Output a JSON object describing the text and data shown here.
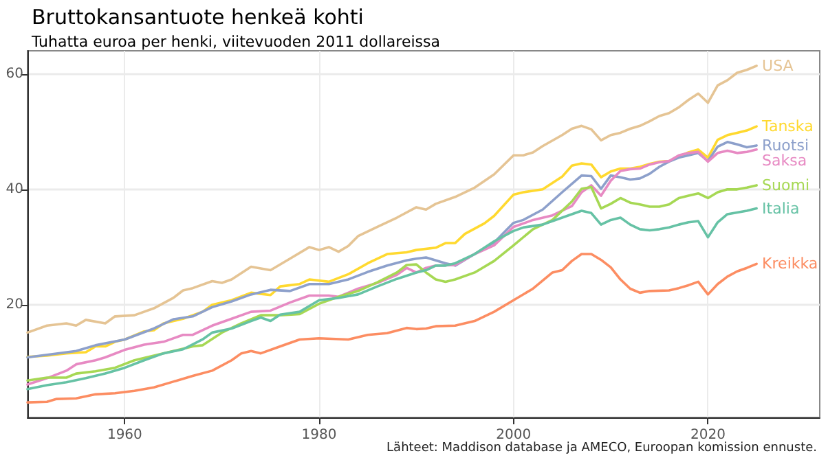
{
  "chart_data": {
    "type": "line",
    "title": "Bruttokansantuote henkeä kohti",
    "subtitle": "Tuhatta euroa per henki, viitevuoden 2011 dollareissa",
    "annotations": [
      "Lähteet: Maddison database ja AMECO, Euroopan komission ennuste."
    ],
    "xlim": [
      1950,
      2031.5
    ],
    "xticks": [
      1960,
      1980,
      2000,
      2020
    ],
    "ylim": [
      0.5,
      64
    ],
    "yticks": [
      20,
      40,
      60
    ],
    "grid": true,
    "legend": false,
    "marker": "none",
    "line_style": "solid",
    "series": [
      {
        "name": "USA",
        "color": "#e5c494",
        "x": [
          1950,
          1952,
          1954,
          1955,
          1956,
          1958,
          1959,
          1961,
          1963,
          1965,
          1966,
          1967,
          1969,
          1970,
          1971,
          1973,
          1975,
          1977,
          1979,
          1980,
          1981,
          1982,
          1983,
          1984,
          1986,
          1988,
          1990,
          1991,
          1992,
          1994,
          1996,
          1998,
          2000,
          2001,
          2002,
          2003,
          2005,
          2006,
          2007,
          2008,
          2009,
          2010,
          2011,
          2012,
          2013,
          2014,
          2015,
          2016,
          2017,
          2018,
          2019,
          2020,
          2021,
          2022,
          2023,
          2024,
          2025
        ],
        "values": [
          15.2,
          16.4,
          16.8,
          16.4,
          17.4,
          16.8,
          18,
          18.2,
          19.4,
          21.2,
          22.5,
          22.9,
          24.1,
          23.8,
          24.4,
          26.6,
          26,
          28,
          30,
          29.5,
          30,
          29.2,
          30.2,
          31.9,
          33.5,
          35.1,
          36.9,
          36.5,
          37.5,
          38.7,
          40.3,
          42.6,
          45.9,
          45.9,
          46.4,
          47.5,
          49.4,
          50.5,
          51,
          50.4,
          48.5,
          49.4,
          49.8,
          50.5,
          51,
          51.8,
          52.7,
          53.2,
          54.2,
          55.5,
          56.6,
          55,
          58,
          58.9,
          60.2,
          60.7,
          61.4
        ]
      },
      {
        "name": "Tanska",
        "color": "#ffd92f",
        "x": [
          1950,
          1952,
          1954,
          1956,
          1957,
          1958,
          1959,
          1960,
          1962,
          1963,
          1964,
          1966,
          1968,
          1969,
          1971,
          1973,
          1975,
          1976,
          1978,
          1979,
          1981,
          1983,
          1985,
          1987,
          1989,
          1990,
          1992,
          1993,
          1994,
          1995,
          1997,
          1998,
          2000,
          2001,
          2003,
          2005,
          2006,
          2007,
          2008,
          2009,
          2010,
          2011,
          2012,
          2013,
          2014,
          2015,
          2016,
          2017,
          2018,
          2019,
          2020,
          2021,
          2022,
          2023,
          2024,
          2025
        ],
        "values": [
          11,
          11.2,
          11.6,
          11.8,
          12.8,
          12.8,
          13.6,
          14,
          15.4,
          15.6,
          16.8,
          17.6,
          18.8,
          20,
          20.8,
          22.1,
          21.7,
          23.2,
          23.6,
          24.4,
          24,
          25.3,
          27.2,
          28.8,
          29.1,
          29.5,
          29.9,
          30.7,
          30.7,
          32.3,
          34.1,
          35.4,
          39.1,
          39.5,
          40,
          42.2,
          44.1,
          44.5,
          44.3,
          42.1,
          43.1,
          43.6,
          43.6,
          43.9,
          44.4,
          44.8,
          44.9,
          45.7,
          46.4,
          46.9,
          45.5,
          48.6,
          49.4,
          49.8,
          50.2,
          50.9
        ]
      },
      {
        "name": "Ruotsi",
        "color": "#8da0cb",
        "x": [
          1950,
          1955,
          1957,
          1960,
          1963,
          1965,
          1967,
          1969,
          1971,
          1973,
          1975,
          1977,
          1979,
          1981,
          1983,
          1985,
          1987,
          1989,
          1990,
          1991,
          1992,
          1993,
          1994,
          1996,
          1998,
          2000,
          2001,
          2003,
          2005,
          2007,
          2008,
          2009,
          2010,
          2011,
          2012,
          2013,
          2014,
          2015,
          2016,
          2017,
          2018,
          2019,
          2020,
          2021,
          2022,
          2023,
          2024,
          2025
        ],
        "values": [
          10.9,
          12,
          13,
          14,
          15.9,
          17.5,
          18,
          19.6,
          20.6,
          21.8,
          22.6,
          22.4,
          23.6,
          23.6,
          24.4,
          25.7,
          26.8,
          27.7,
          28,
          28.2,
          27.7,
          27.2,
          26.8,
          28.8,
          30.8,
          34.2,
          34.7,
          36.5,
          39.5,
          42.4,
          42.3,
          40.1,
          42.4,
          42.1,
          41.7,
          41.9,
          42.7,
          43.9,
          44.8,
          45.5,
          45.9,
          46.3,
          44.9,
          47.4,
          48.2,
          47.8,
          47.3,
          47.6
        ]
      },
      {
        "name": "Saksa",
        "color": "#e78ac3",
        "x": [
          1950,
          1952,
          1954,
          1955,
          1957,
          1958,
          1960,
          1962,
          1964,
          1966,
          1967,
          1969,
          1971,
          1973,
          1975,
          1977,
          1979,
          1981,
          1982,
          1984,
          1986,
          1988,
          1989,
          1990,
          1991,
          1992,
          1994,
          1996,
          1998,
          2000,
          2002,
          2004,
          2006,
          2007,
          2008,
          2009,
          2010,
          2011,
          2012,
          2013,
          2014,
          2015,
          2016,
          2017,
          2018,
          2019,
          2020,
          2021,
          2022,
          2023,
          2024,
          2025
        ],
        "values": [
          6.2,
          7.3,
          8.6,
          9.7,
          10.4,
          10.9,
          12.2,
          13.1,
          13.6,
          14.8,
          14.8,
          16.4,
          17.6,
          18.8,
          19,
          20.4,
          21.6,
          21.6,
          21.4,
          22.8,
          23.8,
          25.2,
          26.4,
          25.6,
          26.4,
          26.8,
          26.9,
          28.8,
          30.3,
          33.5,
          34.7,
          35.5,
          37.1,
          39.5,
          40.7,
          38.9,
          41.5,
          43.2,
          43.5,
          43.6,
          44.3,
          44.7,
          44.9,
          45.9,
          46.3,
          46.5,
          44.8,
          46.3,
          46.7,
          46.3,
          46.5,
          46.9
        ]
      },
      {
        "name": "Suomi",
        "color": "#a6d854",
        "x": [
          1950,
          1952,
          1954,
          1955,
          1957,
          1959,
          1961,
          1963,
          1965,
          1967,
          1968,
          1970,
          1972,
          1974,
          1976,
          1978,
          1980,
          1982,
          1984,
          1986,
          1988,
          1989,
          1990,
          1991,
          1992,
          1993,
          1994,
          1996,
          1998,
          2000,
          2002,
          2004,
          2006,
          2007,
          2008,
          2009,
          2010,
          2011,
          2012,
          2013,
          2014,
          2015,
          2016,
          2017,
          2018,
          2019,
          2020,
          2021,
          2022,
          2023,
          2024,
          2025
        ],
        "values": [
          6.9,
          7.4,
          7.4,
          8.1,
          8.5,
          9.1,
          10.4,
          11.2,
          12,
          12.8,
          13,
          15.2,
          16.8,
          18.2,
          18.2,
          18.4,
          20.2,
          21.4,
          22.4,
          23.9,
          25.6,
          26.9,
          27,
          25.6,
          24.4,
          24,
          24.4,
          25.6,
          27.6,
          30.3,
          33.1,
          34.7,
          37.9,
          40.1,
          40.4,
          36.7,
          37.5,
          38.5,
          37.7,
          37.4,
          37,
          37,
          37.4,
          38.5,
          38.9,
          39.3,
          38.5,
          39.5,
          40,
          40,
          40.3,
          40.7
        ]
      },
      {
        "name": "Italia",
        "color": "#66c2a5",
        "x": [
          1950,
          1952,
          1954,
          1956,
          1958,
          1960,
          1962,
          1964,
          1966,
          1968,
          1969,
          1971,
          1973,
          1974,
          1975,
          1976,
          1978,
          1980,
          1982,
          1984,
          1986,
          1988,
          1990,
          1991,
          1992,
          1993,
          1994,
          1996,
          1998,
          2000,
          2001,
          2003,
          2005,
          2007,
          2008,
          2009,
          2010,
          2011,
          2012,
          2013,
          2014,
          2015,
          2016,
          2017,
          2018,
          2019,
          2020,
          2021,
          2022,
          2023,
          2024,
          2025
        ],
        "values": [
          5.4,
          6.1,
          6.6,
          7.3,
          8.1,
          9.1,
          10.4,
          11.6,
          12.3,
          14,
          15.2,
          15.9,
          17.2,
          17.8,
          17.2,
          18.3,
          18.8,
          20.8,
          21.2,
          21.8,
          23.2,
          24.5,
          25.6,
          26,
          26.8,
          26.8,
          27.2,
          28.8,
          31,
          32.8,
          33.4,
          33.9,
          35.1,
          36.3,
          35.9,
          33.9,
          34.7,
          35.1,
          33.9,
          33.1,
          32.9,
          33.1,
          33.4,
          33.9,
          34.3,
          34.5,
          31.7,
          34.3,
          35.7,
          36,
          36.3,
          36.7
        ]
      },
      {
        "name": "Kreikka",
        "color": "#fc8d62",
        "x": [
          1950,
          1952,
          1953,
          1955,
          1957,
          1959,
          1961,
          1963,
          1965,
          1967,
          1969,
          1971,
          1972,
          1973,
          1974,
          1976,
          1978,
          1980,
          1983,
          1985,
          1987,
          1989,
          1990,
          1991,
          1992,
          1994,
          1996,
          1998,
          2000,
          2002,
          2004,
          2005,
          2006,
          2007,
          2008,
          2009,
          2010,
          2011,
          2012,
          2013,
          2014,
          2016,
          2017,
          2018,
          2019,
          2020,
          2021,
          2022,
          2023,
          2024,
          2025
        ],
        "values": [
          3.1,
          3.2,
          3.7,
          3.8,
          4.5,
          4.7,
          5.1,
          5.7,
          6.7,
          7.7,
          8.6,
          10.4,
          11.6,
          12,
          11.6,
          12.8,
          14,
          14.2,
          14,
          14.8,
          15.1,
          16,
          15.8,
          15.9,
          16.3,
          16.4,
          17.2,
          18.8,
          20.8,
          22.8,
          25.6,
          26,
          27.6,
          28.8,
          28.8,
          27.8,
          26.5,
          24.4,
          22.8,
          22.1,
          22.4,
          22.5,
          22.9,
          23.4,
          24,
          21.8,
          23.6,
          24.9,
          25.8,
          26.4,
          27.1
        ]
      }
    ]
  }
}
